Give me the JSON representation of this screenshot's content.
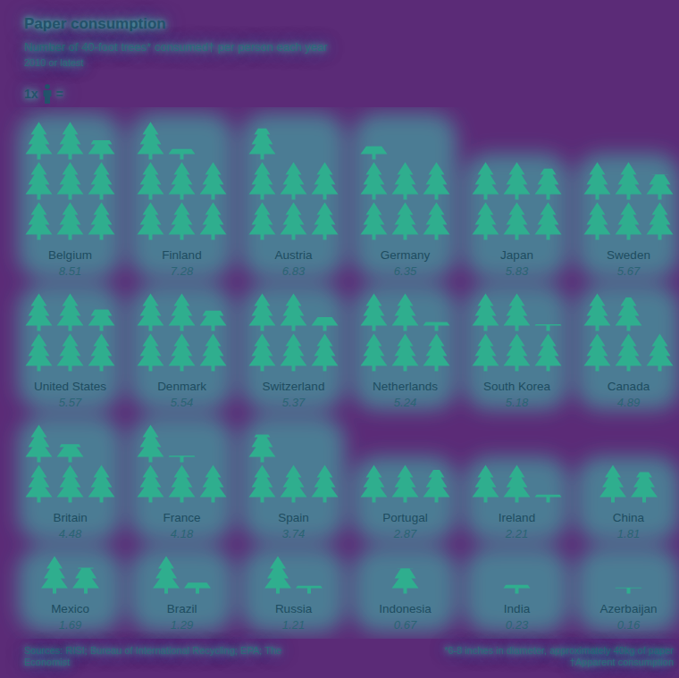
{
  "chart_data": {
    "type": "pictogram",
    "title": "Paper consumption",
    "subtitle": "Number of 40-foot trees* consumed† per person each year",
    "note": "2010 or latest",
    "key": [
      "1x",
      "="
    ],
    "categories": [
      "Belgium",
      "Finland",
      "Austria",
      "Germany",
      "Japan",
      "Sweden",
      "United States",
      "Denmark",
      "Switzerland",
      "Netherlands",
      "South Korea",
      "Canada",
      "Britain",
      "France",
      "Spain",
      "Portugal",
      "Ireland",
      "China",
      "Mexico",
      "Brazil",
      "Russia",
      "Indonesia",
      "India",
      "Azerbaijan"
    ],
    "values": [
      8.51,
      7.28,
      6.83,
      6.35,
      5.83,
      5.67,
      5.57,
      5.54,
      5.37,
      5.24,
      5.18,
      4.89,
      4.48,
      4.18,
      3.74,
      2.87,
      2.21,
      1.81,
      1.69,
      1.29,
      1.21,
      0.67,
      0.23,
      0.16
    ],
    "color": "#2fae8e",
    "data_labels": true,
    "tick_labels": false,
    "source": "Sources: RISI; Bureau of International Recycling; EPA; The Economist",
    "footnotes": [
      "*6-8 inches in diameter, approximately 40kg of paper",
      "†Apparent consumption"
    ]
  }
}
